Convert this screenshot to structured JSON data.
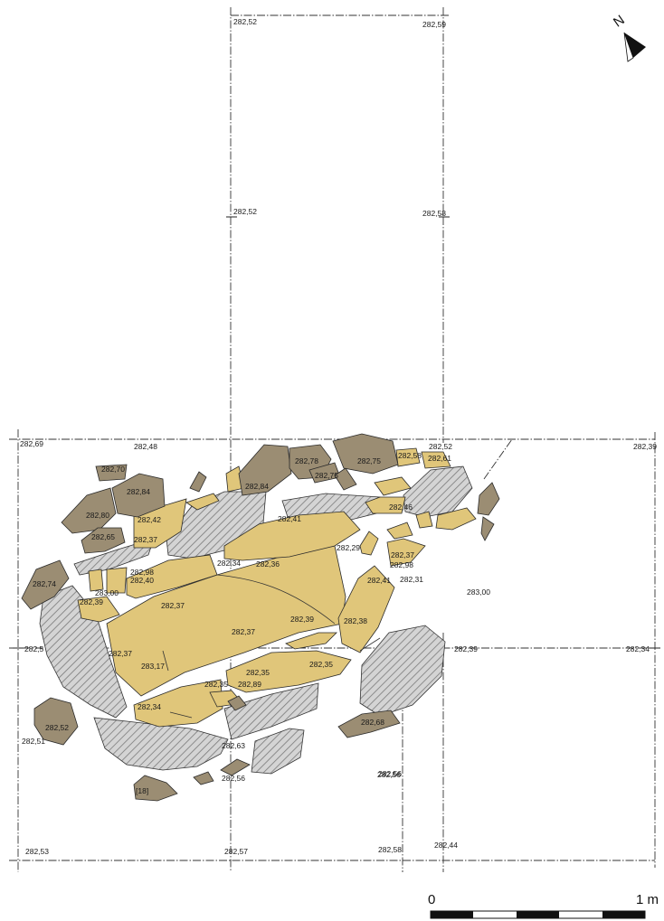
{
  "north_label": "N",
  "scale": {
    "start_label": "0",
    "end_label": "1 m"
  },
  "colors": {
    "stone_light": "#e0c67a",
    "stone_dark": "#9b8d73",
    "hatched_stone": "#c9c9c9",
    "outline": "#2a2a2a"
  },
  "grid_elevations": [
    "282,52",
    "282,59",
    "282,52",
    "282,58",
    "282,69",
    "282,48",
    "282,52",
    "282,39",
    "282,5",
    "282,39",
    "282,34",
    "282,51",
    "282,56",
    "282,53",
    "282,57",
    "282,58",
    "282,44"
  ],
  "stone_elevations": [
    "282,70",
    "282,84",
    "282,80",
    "282,65",
    "282,42",
    "282,37",
    "282,74",
    "282,98",
    "282,40",
    "283,00",
    "282,39",
    "282,84",
    "282,78",
    "282,75",
    "282,75",
    "282,58",
    "282,61",
    "282,41",
    "282,46",
    "282,29",
    "282,37",
    "282,98",
    "282,31",
    "282,41",
    "282,34",
    "282,36",
    "283,00",
    "282,37",
    "282,39",
    "282,38",
    "282,37",
    "282,37",
    "283,17",
    "282,35",
    "282,35",
    "282,89",
    "282,35",
    "282,34",
    "282,52",
    "282,68",
    "282,63",
    "282,56",
    "282,56",
    "[18]"
  ]
}
